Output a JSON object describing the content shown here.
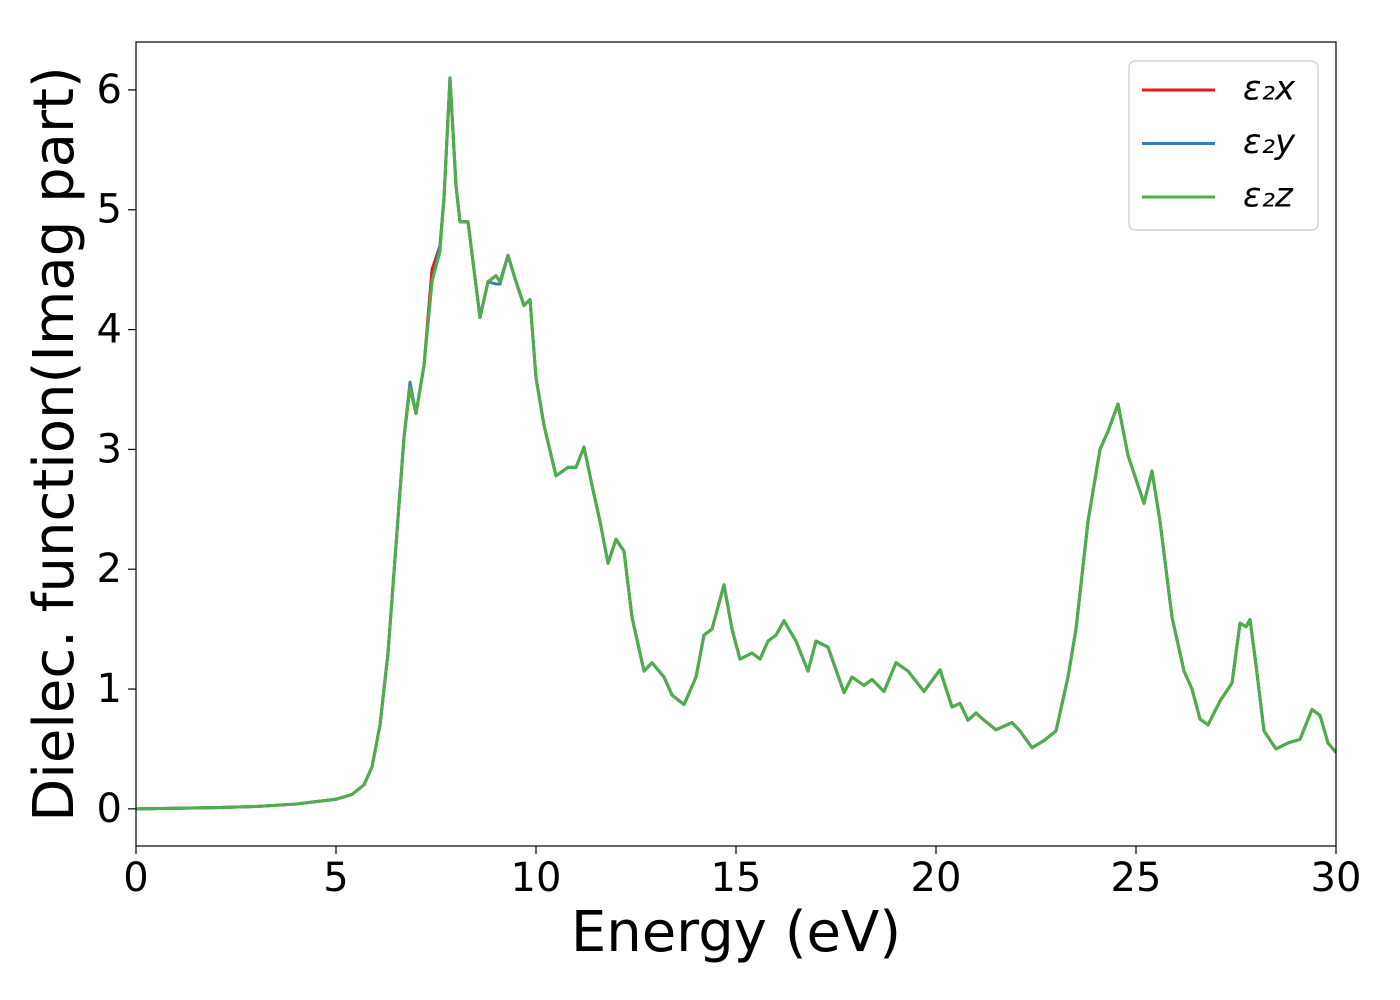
{
  "chart_data": {
    "type": "line",
    "xlabel": "Energy (eV)",
    "ylabel": "Dielec. function(Imag part)",
    "x": [
      0,
      1,
      2,
      3,
      4,
      4.5,
      5,
      5.4,
      5.7,
      5.9,
      6.1,
      6.3,
      6.5,
      6.7,
      6.85,
      7.0,
      7.2,
      7.4,
      7.6,
      7.7,
      7.85,
      8.0,
      8.1,
      8.3,
      8.45,
      8.6,
      8.8,
      9.0,
      9.1,
      9.3,
      9.5,
      9.7,
      9.85,
      10.0,
      10.2,
      10.5,
      10.8,
      11.0,
      11.2,
      11.4,
      11.6,
      11.8,
      12.0,
      12.2,
      12.4,
      12.7,
      12.9,
      13.2,
      13.4,
      13.7,
      14.0,
      14.2,
      14.4,
      14.7,
      14.9,
      15.1,
      15.4,
      15.6,
      15.8,
      16.0,
      16.2,
      16.5,
      16.8,
      17.0,
      17.3,
      17.7,
      17.9,
      18.2,
      18.4,
      18.7,
      19.0,
      19.3,
      19.7,
      20.1,
      20.4,
      20.6,
      20.8,
      21.0,
      21.2,
      21.5,
      21.9,
      22.1,
      22.4,
      22.7,
      23.0,
      23.3,
      23.5,
      23.8,
      24.1,
      24.3,
      24.55,
      24.8,
      25.0,
      25.2,
      25.4,
      25.6,
      25.9,
      26.2,
      26.4,
      26.6,
      26.8,
      27.1,
      27.4,
      27.6,
      27.75,
      27.85,
      28.0,
      28.2,
      28.5,
      28.8,
      29.1,
      29.4,
      29.6,
      29.8,
      30
    ],
    "series": [
      {
        "name": "ε₂x",
        "color": "#e41a1c",
        "values": [
          0,
          0.005,
          0.01,
          0.02,
          0.04,
          0.06,
          0.08,
          0.12,
          0.2,
          0.35,
          0.7,
          1.3,
          2.2,
          3.1,
          3.52,
          3.3,
          3.7,
          4.5,
          4.7,
          5.1,
          6.1,
          5.2,
          4.9,
          4.9,
          4.5,
          4.1,
          4.4,
          4.45,
          4.4,
          4.62,
          4.4,
          4.2,
          4.25,
          3.6,
          3.2,
          2.78,
          2.85,
          2.85,
          3.02,
          2.7,
          2.4,
          2.05,
          2.25,
          2.15,
          1.6,
          1.15,
          1.22,
          1.1,
          0.95,
          0.87,
          1.1,
          1.45,
          1.5,
          1.87,
          1.5,
          1.25,
          1.3,
          1.25,
          1.4,
          1.45,
          1.57,
          1.4,
          1.15,
          1.4,
          1.35,
          0.97,
          1.1,
          1.03,
          1.08,
          0.98,
          1.22,
          1.15,
          0.98,
          1.16,
          0.85,
          0.88,
          0.74,
          0.8,
          0.74,
          0.66,
          0.72,
          0.65,
          0.51,
          0.57,
          0.65,
          1.1,
          1.5,
          2.4,
          3.0,
          3.15,
          3.38,
          2.95,
          2.75,
          2.55,
          2.82,
          2.4,
          1.6,
          1.15,
          1.0,
          0.75,
          0.7,
          0.9,
          1.05,
          1.55,
          1.52,
          1.58,
          1.2,
          0.65,
          0.5,
          0.55,
          0.58,
          0.83,
          0.78,
          0.55,
          0.47
        ]
      },
      {
        "name": "ε₂y",
        "color": "#377eb8",
        "values": [
          0,
          0.005,
          0.01,
          0.02,
          0.04,
          0.06,
          0.08,
          0.12,
          0.2,
          0.35,
          0.7,
          1.3,
          2.2,
          3.1,
          3.56,
          3.3,
          3.7,
          4.4,
          4.7,
          5.1,
          6.1,
          5.2,
          4.9,
          4.9,
          4.5,
          4.1,
          4.4,
          4.38,
          4.38,
          4.62,
          4.4,
          4.2,
          4.25,
          3.6,
          3.2,
          2.78,
          2.85,
          2.85,
          3.02,
          2.7,
          2.4,
          2.05,
          2.25,
          2.15,
          1.6,
          1.15,
          1.22,
          1.1,
          0.95,
          0.87,
          1.1,
          1.45,
          1.5,
          1.87,
          1.5,
          1.25,
          1.3,
          1.25,
          1.4,
          1.45,
          1.57,
          1.4,
          1.15,
          1.4,
          1.35,
          0.97,
          1.1,
          1.03,
          1.08,
          0.98,
          1.22,
          1.15,
          0.98,
          1.16,
          0.85,
          0.88,
          0.74,
          0.8,
          0.74,
          0.66,
          0.72,
          0.65,
          0.51,
          0.57,
          0.65,
          1.1,
          1.5,
          2.4,
          3.0,
          3.15,
          3.38,
          2.95,
          2.75,
          2.55,
          2.82,
          2.4,
          1.6,
          1.15,
          1.0,
          0.75,
          0.7,
          0.9,
          1.05,
          1.55,
          1.52,
          1.58,
          1.2,
          0.65,
          0.5,
          0.55,
          0.58,
          0.83,
          0.78,
          0.55,
          0.47
        ]
      },
      {
        "name": "ε₂z",
        "color": "#4daf4a",
        "values": [
          0,
          0.005,
          0.01,
          0.02,
          0.04,
          0.06,
          0.08,
          0.12,
          0.2,
          0.35,
          0.7,
          1.3,
          2.2,
          3.1,
          3.52,
          3.3,
          3.7,
          4.4,
          4.65,
          5.1,
          6.1,
          5.2,
          4.9,
          4.9,
          4.5,
          4.1,
          4.4,
          4.45,
          4.4,
          4.62,
          4.4,
          4.2,
          4.25,
          3.6,
          3.2,
          2.78,
          2.85,
          2.85,
          3.02,
          2.7,
          2.4,
          2.05,
          2.25,
          2.15,
          1.6,
          1.15,
          1.22,
          1.1,
          0.95,
          0.87,
          1.1,
          1.45,
          1.5,
          1.87,
          1.5,
          1.25,
          1.3,
          1.25,
          1.4,
          1.45,
          1.57,
          1.4,
          1.15,
          1.4,
          1.35,
          0.97,
          1.1,
          1.03,
          1.08,
          0.98,
          1.22,
          1.15,
          0.98,
          1.16,
          0.85,
          0.88,
          0.74,
          0.8,
          0.74,
          0.66,
          0.72,
          0.65,
          0.51,
          0.57,
          0.65,
          1.1,
          1.5,
          2.4,
          3.0,
          3.15,
          3.38,
          2.95,
          2.75,
          2.55,
          2.82,
          2.4,
          1.6,
          1.15,
          1.0,
          0.75,
          0.7,
          0.9,
          1.05,
          1.55,
          1.52,
          1.58,
          1.2,
          0.65,
          0.5,
          0.55,
          0.58,
          0.83,
          0.78,
          0.55,
          0.47
        ]
      }
    ],
    "xlim": [
      0,
      30
    ],
    "xticks": [
      0,
      5,
      10,
      15,
      20,
      25,
      30
    ],
    "ylim": [
      -0.31,
      6.4
    ],
    "yticks": [
      0,
      1,
      2,
      3,
      4,
      5,
      6
    ],
    "grid": false,
    "legend": "upper right"
  }
}
